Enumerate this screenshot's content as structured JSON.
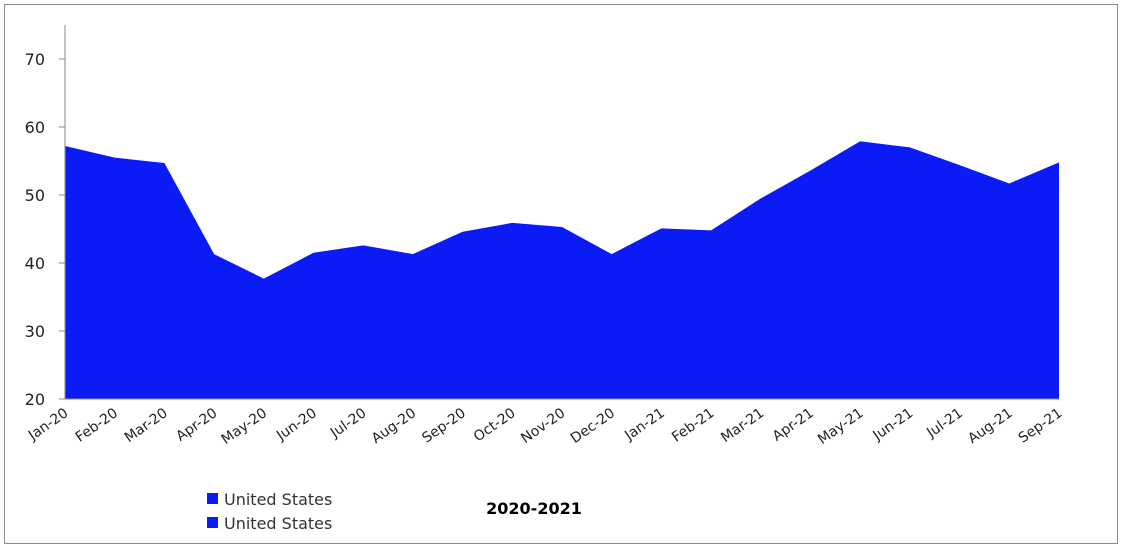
{
  "chart_data": {
    "type": "area",
    "categories": [
      "Jan-20",
      "Feb-20",
      "Mar-20",
      "Apr-20",
      "May-20",
      "Jun-20",
      "Jul-20",
      "Aug-20",
      "Sep-20",
      "Oct-20",
      "Nov-20",
      "Dec-20",
      "Jan-21",
      "Feb-21",
      "Mar-21",
      "Apr-21",
      "May-21",
      "Jun-21",
      "Jul-21",
      "Aug-21",
      "Sep-21"
    ],
    "series": [
      {
        "name": "United States",
        "values": [
          57.2,
          55.5,
          54.7,
          41.3,
          37.7,
          41.5,
          42.6,
          41.3,
          44.6,
          45.9,
          45.3,
          41.3,
          45.1,
          44.8,
          49.5,
          53.6,
          57.9,
          57.0,
          54.4,
          51.7,
          54.8
        ]
      }
    ],
    "legend": [
      "United States",
      "United States"
    ],
    "title": "2020-2021",
    "ylim": [
      20,
      75
    ],
    "yticks": [
      20,
      30,
      40,
      50,
      60,
      70
    ],
    "grid": false,
    "legend_position": "bottom-left",
    "color": "#0b1bf5"
  }
}
